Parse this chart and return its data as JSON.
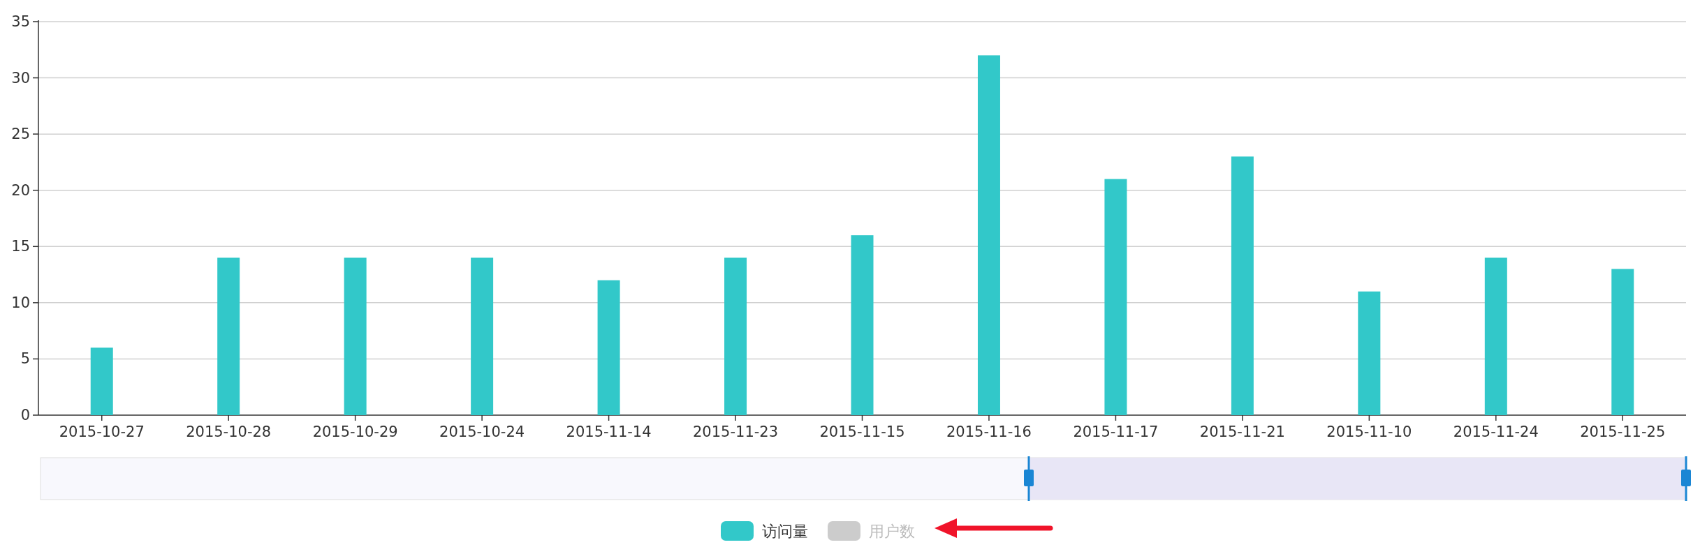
{
  "chart_data": {
    "type": "bar",
    "categories": [
      "2015-10-27",
      "2015-10-28",
      "2015-10-29",
      "2015-10-24",
      "2015-11-14",
      "2015-11-23",
      "2015-11-15",
      "2015-11-16",
      "2015-11-17",
      "2015-11-21",
      "2015-11-10",
      "2015-11-24",
      "2015-11-25"
    ],
    "series": [
      {
        "name": "访问量",
        "color": "#32c8c9",
        "values": [
          6,
          14,
          14,
          14,
          12,
          14,
          16,
          32,
          21,
          23,
          11,
          14,
          13
        ]
      },
      {
        "name": "用户数",
        "color": "#cccccc",
        "values": [
          null,
          null,
          null,
          null,
          null,
          null,
          null,
          null,
          null,
          null,
          null,
          null,
          null
        ]
      }
    ],
    "ylim": [
      0,
      35
    ],
    "yticks": [
      0,
      5,
      10,
      15,
      20,
      25,
      30,
      35
    ],
    "grid": "y",
    "legend": "bottom"
  }
}
